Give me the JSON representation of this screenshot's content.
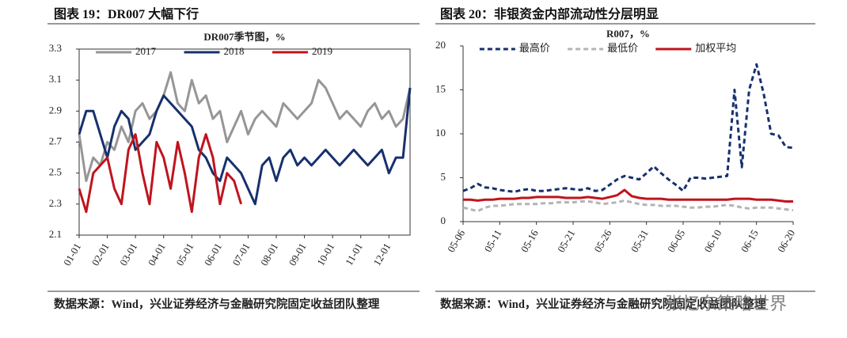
{
  "charts": [
    {
      "header": "图表 19：DR007 大幅下行",
      "footer": "数据来源：Wind，兴业证券经济与金融研究院固定收益团队整理",
      "chart_data": {
        "type": "line",
        "title": "DR007季节图，%",
        "box": true,
        "categories": [
          "01-01",
          null,
          null,
          null,
          "02-01",
          null,
          null,
          null,
          "03-01",
          null,
          null,
          null,
          "04-01",
          null,
          null,
          null,
          "05-01",
          null,
          null,
          null,
          "06-01",
          null,
          null,
          null,
          "07-01",
          null,
          null,
          null,
          "08-01",
          null,
          null,
          null,
          "09-01",
          null,
          null,
          null,
          "10-01",
          null,
          null,
          null,
          "11-01",
          null,
          null,
          null,
          "12-01",
          null,
          null,
          null
        ],
        "ylim": [
          2.1,
          3.3
        ],
        "yticks": [
          2.1,
          2.3,
          2.5,
          2.7,
          2.9,
          3.1,
          3.3
        ],
        "series": [
          {
            "name": "2017",
            "color": "#969696",
            "style": "solid",
            "values": [
              2.75,
              2.45,
              2.6,
              2.55,
              2.7,
              2.65,
              2.8,
              2.7,
              2.9,
              2.95,
              2.85,
              2.9,
              3.0,
              3.15,
              2.95,
              2.9,
              3.1,
              2.95,
              3.0,
              2.85,
              2.9,
              2.7,
              2.8,
              2.9,
              2.75,
              2.85,
              2.9,
              2.85,
              2.8,
              2.95,
              2.9,
              2.85,
              2.9,
              2.95,
              3.1,
              3.05,
              2.95,
              2.85,
              2.9,
              2.85,
              2.8,
              2.9,
              2.95,
              2.85,
              2.9,
              2.8,
              2.85,
              3.05
            ]
          },
          {
            "name": "2018",
            "color": "#17306e",
            "style": "solid",
            "values": [
              2.75,
              2.9,
              2.9,
              2.75,
              2.6,
              2.8,
              2.9,
              2.85,
              2.65,
              2.7,
              2.75,
              2.9,
              3.0,
              2.95,
              2.9,
              2.85,
              2.8,
              2.65,
              2.6,
              2.5,
              2.45,
              2.6,
              2.55,
              2.5,
              2.4,
              2.3,
              2.55,
              2.6,
              2.45,
              2.6,
              2.65,
              2.55,
              2.6,
              2.55,
              2.6,
              2.65,
              2.6,
              2.55,
              2.6,
              2.65,
              2.6,
              2.55,
              2.6,
              2.65,
              2.5,
              2.6,
              2.6,
              3.05
            ]
          },
          {
            "name": "2019",
            "color": "#c0141e",
            "style": "solid",
            "values": [
              2.4,
              2.25,
              2.5,
              2.55,
              2.6,
              2.4,
              2.3,
              2.65,
              2.75,
              2.5,
              2.3,
              2.7,
              2.6,
              2.4,
              2.7,
              2.5,
              2.25,
              2.6,
              2.75,
              2.6,
              2.3,
              2.5,
              2.45,
              2.3,
              null,
              null,
              null,
              null,
              null,
              null,
              null,
              null,
              null,
              null,
              null,
              null,
              null,
              null,
              null,
              null,
              null,
              null,
              null,
              null,
              null,
              null,
              null,
              null
            ]
          }
        ]
      }
    },
    {
      "header": "图表 20：非银资金内部流动性分层明显",
      "footer": "数据来源：Wind，兴业证券经济与金融研究院固定收益团队整理",
      "watermark": "张忆东策略世界",
      "chart_data": {
        "type": "line",
        "title": "R007，%",
        "box": false,
        "categories": [
          "05-06",
          null,
          null,
          null,
          null,
          "05-11",
          null,
          null,
          null,
          null,
          "05-16",
          null,
          null,
          null,
          null,
          "05-21",
          null,
          null,
          null,
          null,
          "05-26",
          null,
          null,
          null,
          null,
          "05-31",
          null,
          null,
          null,
          null,
          "06-05",
          null,
          null,
          null,
          null,
          "06-10",
          null,
          null,
          null,
          null,
          "06-15",
          null,
          null,
          null,
          null,
          "06-20"
        ],
        "ylim": [
          0,
          20
        ],
        "yticks": [
          0,
          5,
          10,
          15,
          20
        ],
        "series": [
          {
            "name": "最高价",
            "color": "#17306e",
            "style": "dashed",
            "values": [
              3.5,
              3.8,
              4.3,
              3.9,
              3.8,
              3.6,
              3.5,
              3.4,
              3.6,
              3.7,
              3.5,
              3.5,
              3.6,
              3.7,
              3.8,
              3.7,
              3.6,
              3.8,
              3.5,
              3.6,
              4.2,
              4.8,
              5.2,
              5.0,
              4.8,
              5.5,
              6.3,
              5.5,
              4.8,
              4.2,
              3.5,
              5.0,
              5.0,
              4.9,
              5.0,
              5.1,
              5.2,
              15.0,
              6.2,
              15.0,
              17.9,
              14.5,
              10.0,
              9.8,
              8.5,
              8.4
            ]
          },
          {
            "name": "最低价",
            "color": "#b4b4b4",
            "style": "dashed",
            "values": [
              1.6,
              1.4,
              1.2,
              1.6,
              1.8,
              1.8,
              1.9,
              2.0,
              2.0,
              2.0,
              2.0,
              2.1,
              2.1,
              2.2,
              2.2,
              2.2,
              2.3,
              2.3,
              2.2,
              2.0,
              2.1,
              2.2,
              2.4,
              2.2,
              2.0,
              1.9,
              1.9,
              1.8,
              1.8,
              1.8,
              1.7,
              1.6,
              1.6,
              1.7,
              1.7,
              1.8,
              1.9,
              1.8,
              1.6,
              1.5,
              1.6,
              1.6,
              1.6,
              1.5,
              1.4,
              1.3
            ]
          },
          {
            "name": "加权平均",
            "color": "#c0141e",
            "style": "solid",
            "values": [
              2.5,
              2.5,
              2.4,
              2.5,
              2.5,
              2.6,
              2.6,
              2.6,
              2.7,
              2.7,
              2.8,
              2.8,
              2.8,
              2.8,
              2.7,
              2.7,
              2.7,
              2.8,
              2.7,
              2.6,
              2.8,
              3.0,
              3.6,
              2.9,
              2.7,
              2.6,
              2.6,
              2.6,
              2.5,
              2.5,
              2.5,
              2.5,
              2.5,
              2.5,
              2.5,
              2.5,
              2.5,
              2.6,
              2.6,
              2.6,
              2.5,
              2.5,
              2.5,
              2.4,
              2.3,
              2.3
            ]
          }
        ]
      }
    }
  ]
}
